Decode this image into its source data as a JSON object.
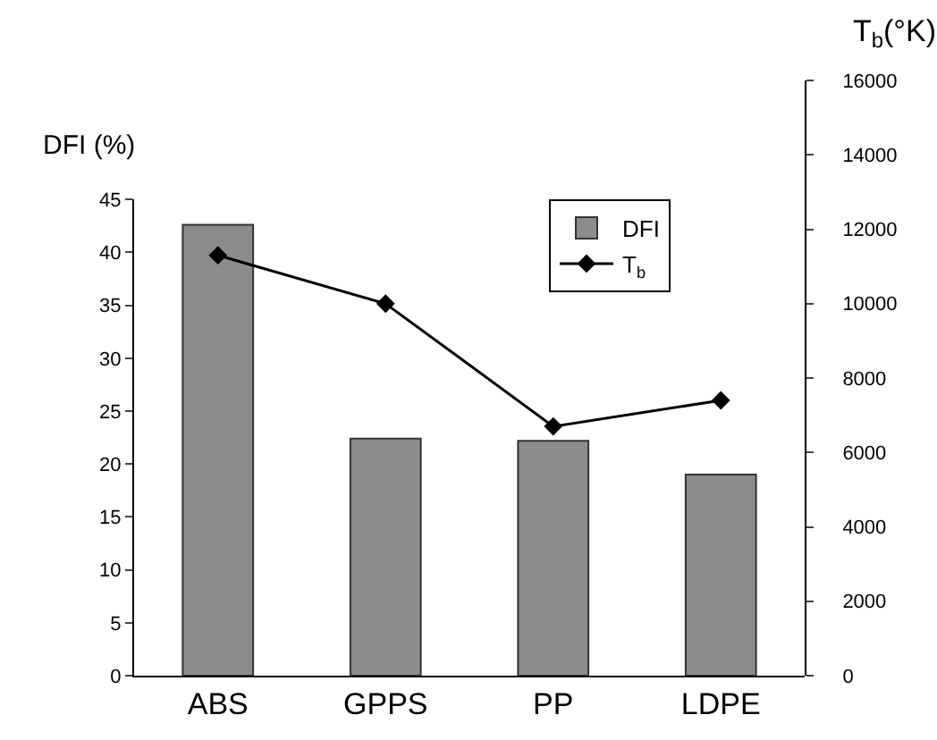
{
  "chart_data": {
    "type": "bar",
    "categories": [
      "ABS",
      "GPPS",
      "PP",
      "LDPE"
    ],
    "ylabel": "DFI (%)",
    "y2label": "T$_{b}$(°K)",
    "series": [
      {
        "name": "DFI",
        "color": "#8c8c8c",
        "values": [
          42.6,
          22.4,
          22.2,
          19.0
        ]
      },
      {
        "name": "T$_{b}$",
        "type": "line",
        "axis": "y2",
        "color": "#000000",
        "values": [
          11300,
          10000,
          6700,
          7400
        ]
      }
    ],
    "ylim": [
      0,
      45
    ],
    "yticks": [
      0,
      5,
      10,
      15,
      20,
      25,
      30,
      35,
      40,
      45
    ],
    "y2lim": [
      0,
      16000
    ],
    "y2ticks": [
      0,
      2000,
      4000,
      6000,
      8000,
      10000,
      12000,
      14000,
      16000
    ],
    "legend": "top right",
    "marker": "diamond",
    "line_style": "solid"
  }
}
